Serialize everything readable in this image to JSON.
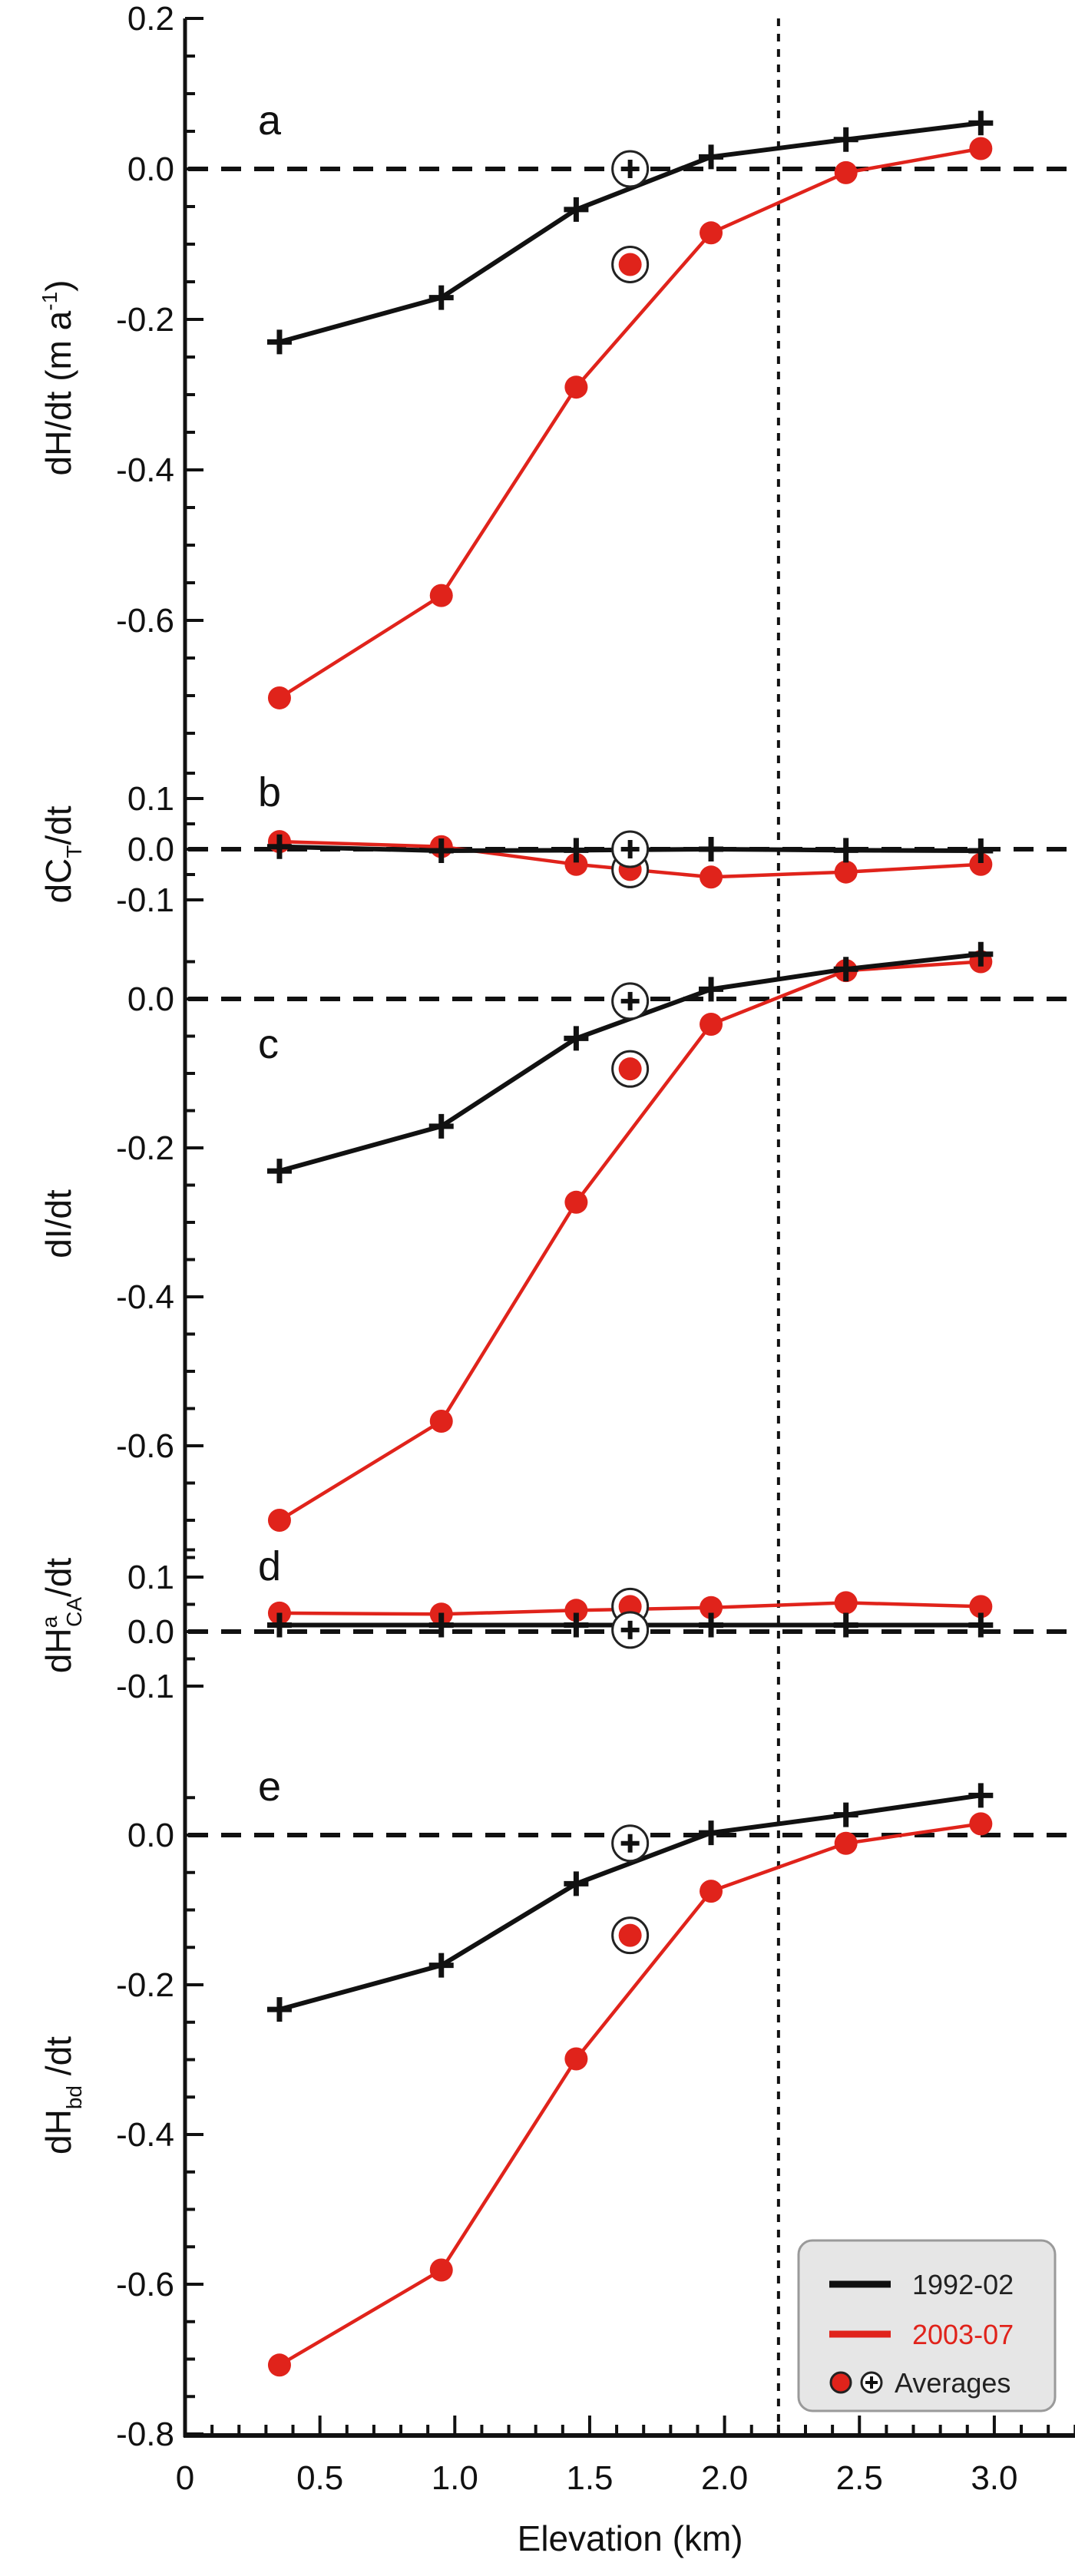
{
  "chart_data": {
    "type": "line",
    "xlabel": "Elevation (km)",
    "xlim": [
      0,
      3.3
    ],
    "xticks": [
      "0",
      "0.5",
      "1.0",
      "1.5",
      "2.0",
      "2.5",
      "3.0"
    ],
    "x": [
      0.35,
      0.95,
      1.45,
      1.95,
      2.45,
      2.95
    ],
    "average_x": 1.65,
    "vertical_reference_line_x": 2.2,
    "colors": {
      "1992-02": "#111111",
      "2003-07": "#e0231b"
    },
    "legend": {
      "placement": "bottom-right of panel e",
      "entries": [
        "1992-02",
        "2003-07",
        "Averages"
      ]
    },
    "panels": [
      {
        "letter": "a",
        "ylabel": {
          "main": "dH/dt (m a",
          "sup": "-1",
          "tail": ")"
        },
        "yticks": [
          "0.2",
          "0.0",
          "-0.2",
          "-0.4",
          "-0.6"
        ],
        "ylim": [
          -0.76,
          0.2
        ],
        "series": [
          {
            "name": "1992-02",
            "values": [
              -0.23,
              -0.171,
              -0.054,
              0.016,
              0.039,
              0.061
            ],
            "average": 0.0
          },
          {
            "name": "2003-07",
            "values": [
              -0.703,
              -0.567,
              -0.29,
              -0.085,
              -0.005,
              0.027
            ],
            "average": -0.127
          }
        ]
      },
      {
        "letter": "b",
        "ylabel": {
          "main": "dC",
          "sub": "T",
          "tail": "/dt"
        },
        "yticks": [
          "0.1",
          "0.0",
          "-0.1"
        ],
        "ylim": [
          -0.15,
          0.15
        ],
        "series": [
          {
            "name": "1992-02",
            "values": [
              0.005,
              -0.003,
              -0.002,
              0.0,
              -0.002,
              -0.003
            ],
            "average": 0.0
          },
          {
            "name": "2003-07",
            "values": [
              0.015,
              0.005,
              -0.03,
              -0.055,
              -0.045,
              -0.03
            ],
            "average": -0.04
          }
        ]
      },
      {
        "letter": "c",
        "ylabel": {
          "main": "dI/dt"
        },
        "yticks": [
          "0.0",
          "-0.2",
          "-0.4",
          "-0.6"
        ],
        "ylim": [
          -0.76,
          0.08
        ],
        "series": [
          {
            "name": "1992-02",
            "values": [
              -0.231,
              -0.171,
              -0.053,
              0.013,
              0.04,
              0.06
            ],
            "average": -0.003
          },
          {
            "name": "2003-07",
            "values": [
              -0.7,
              -0.567,
              -0.273,
              -0.034,
              0.038,
              0.05
            ],
            "average": -0.094
          }
        ]
      },
      {
        "letter": "d",
        "ylabel": {
          "main": "dH",
          "sup": "a",
          "sub": "CA",
          "tail": "/dt"
        },
        "yticks": [
          "0.1",
          "0.0",
          "-0.1"
        ],
        "ylim": [
          -0.15,
          0.15
        ],
        "series": [
          {
            "name": "1992-02",
            "values": [
              0.012,
              0.012,
              0.012,
              0.012,
              0.012,
              0.012
            ],
            "average": 0.003
          },
          {
            "name": "2003-07",
            "values": [
              0.034,
              0.032,
              0.039,
              0.044,
              0.053,
              0.046
            ],
            "average": 0.046
          }
        ]
      },
      {
        "letter": "e",
        "ylabel": {
          "main": "dH",
          "sub": "bd",
          "tail": " /dt"
        },
        "yticks": [
          "0.0",
          "-0.2",
          "-0.4",
          "-0.6",
          "-0.8"
        ],
        "ylim": [
          -0.8,
          0.08
        ],
        "series": [
          {
            "name": "1992-02",
            "values": [
              -0.233,
              -0.174,
              -0.065,
              0.003,
              0.027,
              0.053
            ],
            "average": -0.011
          },
          {
            "name": "2003-07",
            "values": [
              -0.708,
              -0.581,
              -0.299,
              -0.075,
              -0.011,
              0.015
            ],
            "average": -0.134
          }
        ]
      }
    ]
  }
}
